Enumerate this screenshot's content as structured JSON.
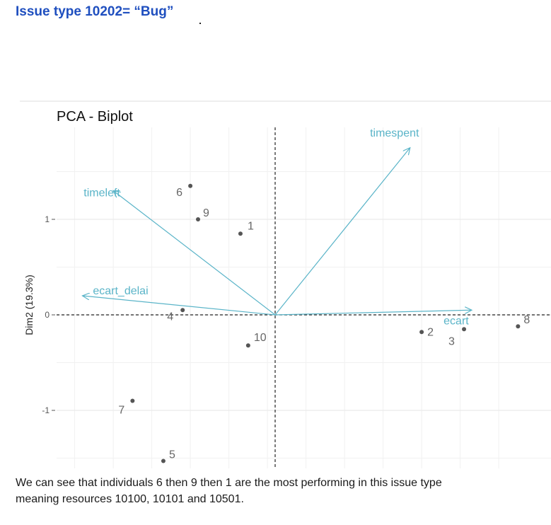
{
  "heading": "Issue type 10202= “Bug”",
  "caption": {
    "line1": "We can see that individuals 6 then 9 then 1 are the most performing in this issue type",
    "line2": "meaning resources 10100, 10101 and 10501."
  },
  "chart_data": {
    "type": "scatter",
    "title": "PCA - Biplot",
    "xlabel": "",
    "ylabel": "Dim2 (19.3%)",
    "ylim": [
      -1.5,
      1.7
    ],
    "y_ticks": [
      {
        "value": 1,
        "label": "1"
      },
      {
        "value": 0,
        "label": "0"
      },
      {
        "value": -1,
        "label": "-1"
      }
    ],
    "grid": true,
    "zero_lines": "dashed",
    "point_color": "#555555",
    "arrow_color": "#5ab4c8",
    "points": [
      {
        "label": "1",
        "x": -0.45,
        "y": 0.85
      },
      {
        "label": "2",
        "x": 1.9,
        "y": -0.18
      },
      {
        "label": "3",
        "x": 2.45,
        "y": -0.15
      },
      {
        "label": "4",
        "x": -1.2,
        "y": 0.05
      },
      {
        "label": "5",
        "x": -1.45,
        "y": -1.53
      },
      {
        "label": "6",
        "x": -1.1,
        "y": 1.35
      },
      {
        "label": "7",
        "x": -1.85,
        "y": -0.9
      },
      {
        "label": "8",
        "x": 3.15,
        "y": -0.12
      },
      {
        "label": "9",
        "x": -1.0,
        "y": 1.0
      },
      {
        "label": "10",
        "x": -0.35,
        "y": -0.32
      }
    ],
    "variables": [
      {
        "label": "timespent",
        "x": 1.75,
        "y": 1.75
      },
      {
        "label": "timeleft",
        "x": -2.1,
        "y": 1.3
      },
      {
        "label": "ecart_delai",
        "x": -2.5,
        "y": 0.2
      },
      {
        "label": "ecart",
        "x": 2.55,
        "y": 0.05
      }
    ]
  }
}
